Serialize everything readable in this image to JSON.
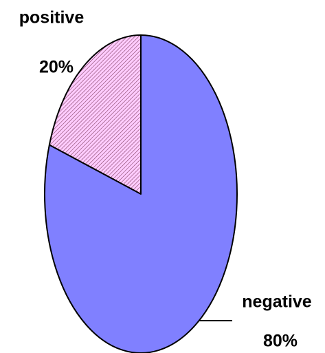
{
  "chart_data": {
    "type": "pie",
    "categories": [
      "positive",
      "negative"
    ],
    "values": [
      20,
      80
    ],
    "value_labels": [
      "20%",
      "80%"
    ],
    "colors": [
      "#ffccff",
      "#8080ff"
    ]
  }
}
